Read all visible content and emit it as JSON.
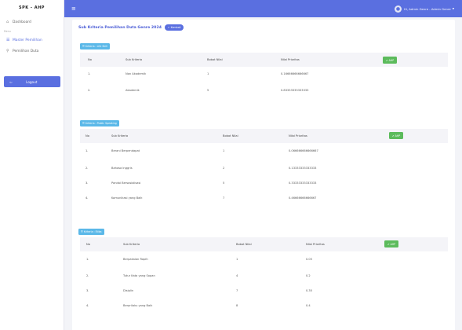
{
  "sidebar": {
    "brand": "SPK - AHP",
    "section_label": "Menu",
    "items": [
      {
        "icon": "home-icon",
        "glyph": "⌂",
        "label": "Dashboard"
      },
      {
        "icon": "list-icon",
        "glyph": "☰",
        "label": "Master Pemilihan"
      },
      {
        "icon": "filter-icon",
        "glyph": "⚲",
        "label": "Pemilihan Duta"
      }
    ],
    "logout_label": "Logout"
  },
  "topbar": {
    "user_name": "Hi, Admin Genre - Admin Genre"
  },
  "page": {
    "title": "Sub Kriteria Pemilihan Duta Genre 2024",
    "back_label": "← Kembali"
  },
  "tables": [
    {
      "tag": "☰ Kriteria : Life Skill",
      "headers": [
        "No",
        "Sub Kriteria",
        "Bobot Nilai",
        "Nilai Prioritas"
      ],
      "ahp_label": "✔ AHP",
      "rows": [
        [
          "1.",
          "Non Akademik",
          "1",
          "0.16666666666667"
        ],
        [
          "2.",
          "Akademik",
          "5",
          "0.83333333333333"
        ]
      ]
    },
    {
      "tag": "☰ Kriteria : Public Speaking",
      "headers": [
        "No",
        "Sub Kriteria",
        "Bobot Nilai",
        "Nilai Prioritas"
      ],
      "ahp_label": "✔ AHP",
      "rows": [
        [
          "1.",
          "Berani Berpendapat",
          "1",
          "0.066666666666667"
        ],
        [
          "2.",
          "Bahasa Inggris",
          "2",
          "0.13333333333333"
        ],
        [
          "3.",
          "Pandai Bersosialisasi",
          "5",
          "0.33333333333333"
        ],
        [
          "4.",
          "Komunikasi yang Baik",
          "7",
          "0.46666666666667"
        ]
      ]
    },
    {
      "tag": "☰ Kriteria : Etika",
      "headers": [
        "No",
        "Sub Kriteria",
        "Bobot Nilai",
        "Nilai Prioritas"
      ],
      "ahp_label": "✔ AHP",
      "rows": [
        [
          "1.",
          "Berpakaian Rapih",
          "1",
          "0.05"
        ],
        [
          "2.",
          "Tutur Kata yang Sopan",
          "4",
          "0.2"
        ],
        [
          "3.",
          "Disiplin",
          "7",
          "0.35"
        ],
        [
          "4.",
          "Berprilaku yang Baik",
          "8",
          "0.4"
        ]
      ]
    }
  ]
}
